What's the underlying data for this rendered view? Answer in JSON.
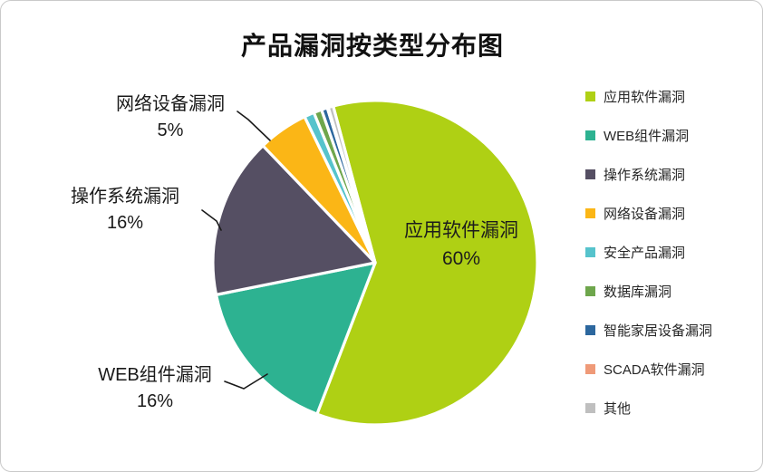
{
  "title": "产品漏洞按类型分布图",
  "chart_data": {
    "type": "pie",
    "title": "产品漏洞按类型分布图",
    "legend_position": "right",
    "start_angle_deg": -15,
    "units": "%",
    "series": [
      {
        "key": "app-software",
        "name": "应用软件漏洞",
        "value": 60,
        "color": "#afd014",
        "label": "应用软件漏洞 60%",
        "label_position": "inside"
      },
      {
        "key": "web-component",
        "name": "WEB组件漏洞",
        "value": 16,
        "color": "#2db291",
        "label": "WEB组件漏洞 16%",
        "label_position": "outside"
      },
      {
        "key": "os",
        "name": "操作系统漏洞",
        "value": 16,
        "color": "#554f63",
        "label": "操作系统漏洞 16%",
        "label_position": "outside"
      },
      {
        "key": "network-device",
        "name": "网络设备漏洞",
        "value": 5,
        "color": "#fbb616",
        "label": "网络设备漏洞 5%",
        "label_position": "outside"
      },
      {
        "key": "security-product",
        "name": "安全产品漏洞",
        "value": 1,
        "color": "#56c3cc",
        "label": "",
        "label_position": "none"
      },
      {
        "key": "database",
        "name": "数据库漏洞",
        "value": 0.8,
        "color": "#6ea64c",
        "label": "",
        "label_position": "none"
      },
      {
        "key": "smart-home",
        "name": "智能家居设备漏洞",
        "value": 0.6,
        "color": "#2c679e",
        "label": "",
        "label_position": "none"
      },
      {
        "key": "scada",
        "name": "SCADA软件漏洞",
        "value": 0.1,
        "color": "#ef9a78",
        "label": "",
        "label_position": "none"
      },
      {
        "key": "other",
        "name": "其他",
        "value": 0.5,
        "color": "#bfbfbf",
        "label": "",
        "label_position": "none"
      }
    ]
  },
  "labels": {
    "inside": {
      "line1": "应用软件漏洞",
      "line2": "60%"
    },
    "network": {
      "line1": "网络设备漏洞",
      "line2": "5%"
    },
    "os": {
      "line1": "操作系统漏洞",
      "line2": "16%"
    },
    "web": {
      "line1": "WEB组件漏洞",
      "line2": "16%"
    }
  }
}
